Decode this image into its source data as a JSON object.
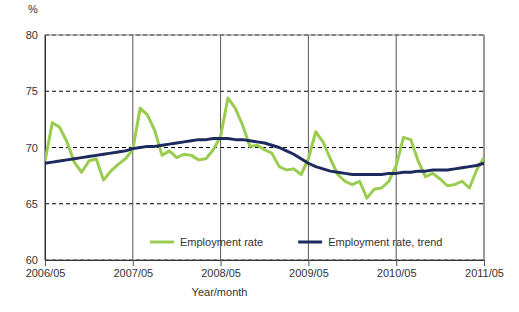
{
  "chart_data": {
    "type": "line",
    "y_label": "%",
    "x_label": "Year/month",
    "categories": [
      "2006/05",
      null,
      null,
      null,
      null,
      null,
      null,
      null,
      null,
      null,
      null,
      null,
      "2007/05",
      null,
      null,
      null,
      null,
      null,
      null,
      null,
      null,
      null,
      null,
      null,
      "2008/05",
      null,
      null,
      null,
      null,
      null,
      null,
      null,
      null,
      null,
      null,
      null,
      "2009/05",
      null,
      null,
      null,
      null,
      null,
      null,
      null,
      null,
      null,
      null,
      null,
      "2010/05",
      null,
      null,
      null,
      null,
      null,
      null,
      null,
      null,
      null,
      null,
      null,
      "2011/05"
    ],
    "series": [
      {
        "name": "Employment rate",
        "color": "#9acd4f",
        "line_style": "solid",
        "values": [
          68.8,
          72.2,
          71.8,
          70.5,
          68.7,
          67.8,
          68.8,
          69.0,
          67.1,
          67.9,
          68.5,
          69.0,
          69.8,
          73.5,
          72.9,
          71.5,
          69.3,
          69.7,
          69.1,
          69.4,
          69.3,
          68.9,
          69.0,
          69.8,
          71.0,
          74.4,
          73.5,
          72.0,
          70.1,
          70.2,
          69.8,
          69.5,
          68.3,
          68.0,
          68.1,
          67.6,
          69.0,
          71.4,
          70.5,
          69.0,
          67.6,
          67.0,
          66.7,
          67.0,
          65.5,
          66.3,
          66.4,
          67.0,
          68.4,
          70.9,
          70.7,
          68.8,
          67.4,
          67.7,
          67.2,
          66.6,
          66.7,
          67.0,
          66.4,
          68.0,
          69.1
        ]
      },
      {
        "name": "Employment rate, trend",
        "color": "#1c2a5e",
        "line_style": "solid",
        "values": [
          68.6,
          68.7,
          68.8,
          68.9,
          69.0,
          69.1,
          69.2,
          69.3,
          69.4,
          69.5,
          69.6,
          69.7,
          69.9,
          70.0,
          70.1,
          70.1,
          70.2,
          70.3,
          70.4,
          70.5,
          70.6,
          70.7,
          70.7,
          70.8,
          70.8,
          70.8,
          70.7,
          70.7,
          70.6,
          70.5,
          70.4,
          70.2,
          70.0,
          69.7,
          69.4,
          69.0,
          68.6,
          68.3,
          68.1,
          67.9,
          67.8,
          67.7,
          67.6,
          67.6,
          67.6,
          67.6,
          67.6,
          67.7,
          67.7,
          67.8,
          67.8,
          67.9,
          67.9,
          68.0,
          68.0,
          68.0,
          68.1,
          68.2,
          68.3,
          68.4,
          68.6
        ]
      }
    ],
    "ylim": [
      60,
      80
    ],
    "yticks": [
      60,
      65,
      70,
      75,
      80
    ],
    "grid": true,
    "legend": "bottom"
  }
}
